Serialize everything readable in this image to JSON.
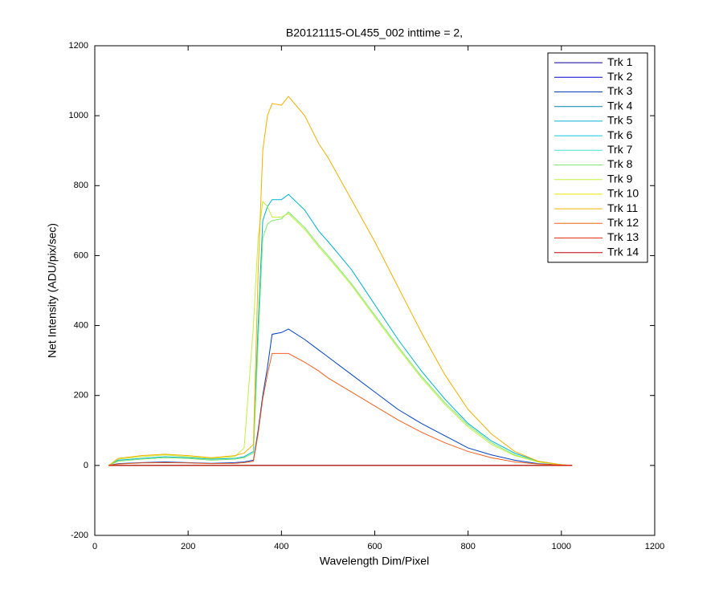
{
  "chart_data": {
    "type": "line",
    "title": "B20121115-OL455_002 inttime = 2,",
    "x_label": "Wavelength Dim/Pixel",
    "y_label": "Net Intensity (ADU/pix/sec)",
    "xlim": [
      0,
      1200
    ],
    "xticks": [
      0,
      200,
      400,
      600,
      800,
      1000,
      1200
    ],
    "ylim": [
      -200,
      1200
    ],
    "yticks": [
      -200,
      0,
      200,
      400,
      600,
      800,
      1000,
      1200
    ],
    "legend": "northeast",
    "grid": false,
    "x": [
      30,
      50,
      100,
      150,
      200,
      250,
      300,
      320,
      340,
      350,
      360,
      370,
      380,
      400,
      415,
      450,
      480,
      500,
      550,
      600,
      650,
      700,
      750,
      800,
      850,
      900,
      950,
      1000,
      1023
    ],
    "series": [
      {
        "name": "Trk 1",
        "color": "#000090",
        "values": [
          0,
          0,
          0,
          0,
          0,
          0,
          0,
          0,
          0,
          0,
          0,
          0,
          0,
          0,
          0,
          0,
          0,
          0,
          0,
          0,
          0,
          0,
          0,
          0,
          0,
          0,
          0,
          0,
          0
        ]
      },
      {
        "name": "Trk 2",
        "color": "#0000c8",
        "values": [
          0,
          0,
          0,
          0,
          0,
          0,
          0,
          0,
          0,
          0,
          0,
          0,
          0,
          0,
          0,
          0,
          0,
          0,
          0,
          0,
          0,
          0,
          0,
          0,
          0,
          0,
          0,
          0,
          0
        ]
      },
      {
        "name": "Trk 3",
        "color": "#0040c0",
        "values": [
          0,
          5,
          8,
          10,
          8,
          6,
          8,
          10,
          15,
          100,
          200,
          280,
          375,
          380,
          390,
          360,
          330,
          310,
          260,
          210,
          160,
          120,
          85,
          50,
          30,
          15,
          5,
          1,
          0
        ]
      },
      {
        "name": "Trk 4",
        "color": "#0080b0",
        "values": [
          0,
          0,
          0,
          0,
          0,
          0,
          0,
          0,
          0,
          0,
          0,
          0,
          0,
          0,
          0,
          0,
          0,
          0,
          0,
          0,
          0,
          0,
          0,
          0,
          0,
          0,
          0,
          0,
          0
        ]
      },
      {
        "name": "Trk 5",
        "color": "#00b0d0",
        "values": [
          0,
          15,
          20,
          25,
          22,
          18,
          20,
          25,
          40,
          400,
          700,
          740,
          760,
          760,
          775,
          730,
          670,
          640,
          560,
          460,
          360,
          270,
          190,
          120,
          70,
          35,
          12,
          2,
          0
        ]
      },
      {
        "name": "Trk 6",
        "color": "#10c8e0",
        "values": [
          0,
          0,
          0,
          0,
          0,
          0,
          0,
          0,
          0,
          0,
          0,
          0,
          0,
          0,
          0,
          0,
          0,
          0,
          0,
          0,
          0,
          0,
          0,
          0,
          0,
          0,
          0,
          0,
          0
        ]
      },
      {
        "name": "Trk 7",
        "color": "#40e0d0",
        "values": [
          0,
          0,
          0,
          0,
          0,
          0,
          0,
          0,
          0,
          0,
          0,
          0,
          0,
          0,
          0,
          0,
          0,
          0,
          0,
          0,
          0,
          0,
          0,
          0,
          0,
          0,
          0,
          0,
          0
        ]
      },
      {
        "name": "Trk 8",
        "color": "#80e870",
        "values": [
          0,
          12,
          18,
          22,
          20,
          15,
          18,
          22,
          35,
          350,
          650,
          690,
          700,
          705,
          725,
          680,
          630,
          600,
          520,
          430,
          340,
          255,
          180,
          115,
          65,
          30,
          10,
          2,
          0
        ]
      },
      {
        "name": "Trk 9",
        "color": "#c0f040",
        "values": [
          0,
          18,
          25,
          30,
          25,
          20,
          25,
          50,
          400,
          650,
          755,
          740,
          710,
          710,
          720,
          675,
          625,
          595,
          515,
          425,
          335,
          250,
          175,
          110,
          60,
          28,
          10,
          2,
          0
        ]
      },
      {
        "name": "Trk 10",
        "color": "#e8e800",
        "values": [
          0,
          0,
          0,
          0,
          0,
          0,
          0,
          0,
          0,
          0,
          0,
          0,
          0,
          0,
          0,
          0,
          0,
          0,
          0,
          0,
          0,
          0,
          0,
          0,
          0,
          0,
          0,
          0,
          0
        ]
      },
      {
        "name": "Trk 11",
        "color": "#f0b000",
        "values": [
          0,
          20,
          28,
          32,
          28,
          22,
          28,
          35,
          60,
          550,
          900,
          1000,
          1035,
          1030,
          1055,
          1000,
          920,
          880,
          760,
          640,
          510,
          380,
          260,
          160,
          90,
          40,
          12,
          2,
          0
        ]
      },
      {
        "name": "Trk 12",
        "color": "#f06020",
        "values": [
          0,
          4,
          7,
          8,
          7,
          5,
          6,
          8,
          12,
          90,
          190,
          260,
          320,
          320,
          320,
          295,
          270,
          250,
          210,
          170,
          130,
          95,
          65,
          40,
          22,
          10,
          4,
          1,
          0
        ]
      },
      {
        "name": "Trk 13",
        "color": "#e03010",
        "values": [
          0,
          0,
          0,
          0,
          0,
          0,
          0,
          0,
          0,
          0,
          0,
          0,
          0,
          0,
          0,
          0,
          0,
          0,
          0,
          0,
          0,
          0,
          0,
          0,
          0,
          0,
          0,
          0,
          0
        ]
      },
      {
        "name": "Trk 14",
        "color": "#c00000",
        "values": [
          0,
          0,
          0,
          0,
          0,
          0,
          0,
          0,
          0,
          0,
          0,
          0,
          0,
          0,
          0,
          0,
          0,
          0,
          0,
          0,
          0,
          0,
          0,
          0,
          0,
          0,
          0,
          0,
          0
        ]
      }
    ]
  }
}
